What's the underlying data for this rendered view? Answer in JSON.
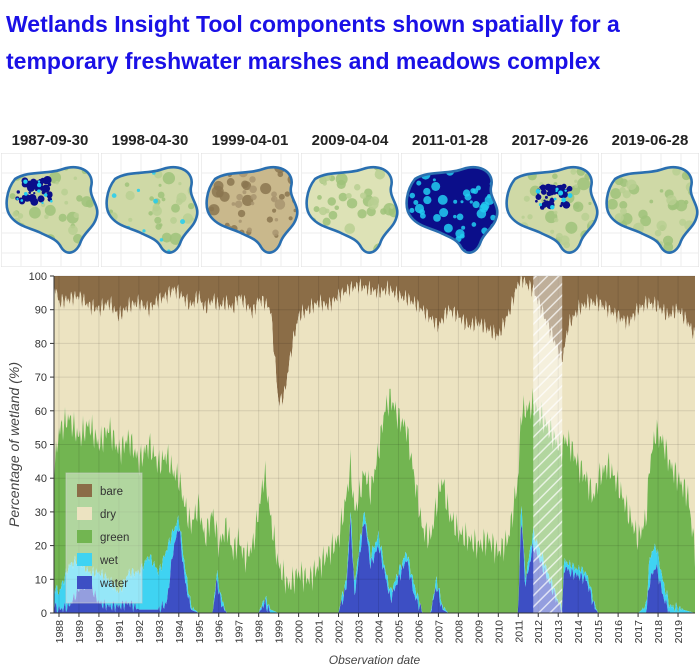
{
  "title": "Wetlands Insight Tool components shown spatially for a temporary freshwater marshes and meadows complex",
  "thumbnails": [
    {
      "date": "1987-09-30",
      "state": "partial-water"
    },
    {
      "date": "1998-04-30",
      "state": "green-wet"
    },
    {
      "date": "1999-04-01",
      "state": "bare-dry"
    },
    {
      "date": "2009-04-04",
      "state": "dry"
    },
    {
      "date": "2011-01-28",
      "state": "full-water"
    },
    {
      "date": "2017-09-26",
      "state": "partial-water"
    },
    {
      "date": "2019-06-28",
      "state": "dry-green"
    }
  ],
  "colors": {
    "water": "#3d4fc4",
    "wet": "#3fd3f2",
    "green": "#72b551",
    "dry": "#ece3c1",
    "bare": "#8b6d47",
    "outline": "#2a6fb0",
    "water_thumb": "#0b0e8a",
    "wet_thumb": "#22ccf0"
  },
  "chart_data": {
    "type": "area",
    "stacked": true,
    "xlabel": "Observation date",
    "ylabel": "Percentage of wetland (%)",
    "xlim": [
      1987.75,
      2019.85
    ],
    "ylim": [
      0,
      100
    ],
    "yticks": [
      0,
      10,
      20,
      30,
      40,
      50,
      60,
      70,
      80,
      90,
      100
    ],
    "xticks": [
      "1988",
      "1989",
      "1990",
      "1991",
      "1992",
      "1993",
      "1994",
      "1995",
      "1996",
      "1997",
      "1998",
      "1999",
      "2000",
      "2001",
      "2002",
      "2003",
      "2004",
      "2005",
      "2006",
      "2007",
      "2008",
      "2009",
      "2010",
      "2011",
      "2012",
      "2013",
      "2014",
      "2015",
      "2016",
      "2017",
      "2018",
      "2019"
    ],
    "grid": true,
    "legend_position": "bottom-left",
    "legend": [
      "bare",
      "dry",
      "green",
      "wet",
      "water"
    ],
    "gap_period": [
      2011.75,
      2013.2
    ],
    "series_order": [
      "water",
      "wet",
      "green",
      "dry",
      "bare"
    ],
    "note": "Cumulative boundaries: water = water; wet = water+wet; green = water+wet+green; bare_top = 100 - bare.",
    "water": [
      [
        1987.75,
        2
      ],
      [
        1988.0,
        1
      ],
      [
        1988.5,
        2
      ],
      [
        1989.0,
        7
      ],
      [
        1989.5,
        9
      ],
      [
        1990.0,
        3
      ],
      [
        1990.5,
        2
      ],
      [
        1991.0,
        2
      ],
      [
        1991.5,
        3
      ],
      [
        1992.0,
        1
      ],
      [
        1992.5,
        1
      ],
      [
        1993.0,
        1
      ],
      [
        1993.4,
        3
      ],
      [
        1993.7,
        18
      ],
      [
        1994.0,
        26
      ],
      [
        1994.3,
        10
      ],
      [
        1994.6,
        1
      ],
      [
        1995.0,
        0
      ],
      [
        1995.7,
        0
      ],
      [
        1995.9,
        10
      ],
      [
        1996.1,
        3
      ],
      [
        1996.4,
        0
      ],
      [
        1997.0,
        0
      ],
      [
        1997.3,
        0
      ],
      [
        1998.0,
        0
      ],
      [
        1998.3,
        3
      ],
      [
        1998.6,
        0
      ],
      [
        1999.0,
        0
      ],
      [
        2000.0,
        0
      ],
      [
        2001.0,
        0
      ],
      [
        2002.0,
        0
      ],
      [
        2002.4,
        8
      ],
      [
        2002.6,
        28
      ],
      [
        2002.8,
        5
      ],
      [
        2003.0,
        15
      ],
      [
        2003.3,
        28
      ],
      [
        2003.6,
        14
      ],
      [
        2004.0,
        20
      ],
      [
        2004.3,
        12
      ],
      [
        2004.6,
        4
      ],
      [
        2005.0,
        10
      ],
      [
        2005.4,
        16
      ],
      [
        2005.8,
        5
      ],
      [
        2006.2,
        0
      ],
      [
        2006.6,
        0
      ],
      [
        2006.9,
        8
      ],
      [
        2007.2,
        1
      ],
      [
        2007.5,
        0
      ],
      [
        2008.0,
        0
      ],
      [
        2009.0,
        0
      ],
      [
        2010.0,
        0
      ],
      [
        2011.0,
        0
      ],
      [
        2011.15,
        30
      ],
      [
        2011.35,
        8
      ],
      [
        2011.75,
        20
      ],
      [
        2013.2,
        0
      ],
      [
        2013.3,
        14
      ],
      [
        2013.6,
        12
      ],
      [
        2014.0,
        11
      ],
      [
        2014.4,
        10
      ],
      [
        2014.8,
        2
      ],
      [
        2015.0,
        0
      ],
      [
        2016.0,
        0
      ],
      [
        2017.0,
        0
      ],
      [
        2017.4,
        0
      ],
      [
        2017.6,
        10
      ],
      [
        2017.9,
        14
      ],
      [
        2018.3,
        4
      ],
      [
        2018.6,
        0
      ],
      [
        2019.85,
        0
      ]
    ],
    "wet": [
      [
        1987.75,
        8
      ],
      [
        1988.0,
        6
      ],
      [
        1988.5,
        14
      ],
      [
        1989.0,
        16
      ],
      [
        1989.5,
        12
      ],
      [
        1990.0,
        12
      ],
      [
        1990.5,
        10
      ],
      [
        1991.0,
        6
      ],
      [
        1991.5,
        12
      ],
      [
        1992.0,
        12
      ],
      [
        1992.5,
        17
      ],
      [
        1993.0,
        12
      ],
      [
        1993.4,
        19
      ],
      [
        1993.7,
        24
      ],
      [
        1994.0,
        28
      ],
      [
        1994.3,
        14
      ],
      [
        1994.6,
        2
      ],
      [
        1995.0,
        0
      ],
      [
        1995.7,
        0
      ],
      [
        1995.9,
        12
      ],
      [
        1996.1,
        5
      ],
      [
        1996.4,
        0
      ],
      [
        1997.0,
        0
      ],
      [
        1997.3,
        0
      ],
      [
        1998.0,
        0
      ],
      [
        1998.3,
        4
      ],
      [
        1998.6,
        1
      ],
      [
        1999.0,
        0
      ],
      [
        2000.0,
        0
      ],
      [
        2001.0,
        0
      ],
      [
        2002.0,
        0
      ],
      [
        2002.4,
        10
      ],
      [
        2002.6,
        30
      ],
      [
        2002.8,
        8
      ],
      [
        2003.0,
        18
      ],
      [
        2003.3,
        30
      ],
      [
        2003.6,
        17
      ],
      [
        2004.0,
        23
      ],
      [
        2004.3,
        14
      ],
      [
        2004.6,
        6
      ],
      [
        2005.0,
        12
      ],
      [
        2005.4,
        18
      ],
      [
        2005.8,
        8
      ],
      [
        2006.2,
        0
      ],
      [
        2006.6,
        0
      ],
      [
        2006.9,
        10
      ],
      [
        2007.2,
        2
      ],
      [
        2007.5,
        0
      ],
      [
        2008.0,
        0
      ],
      [
        2009.0,
        0
      ],
      [
        2010.0,
        0
      ],
      [
        2011.0,
        0
      ],
      [
        2011.15,
        34
      ],
      [
        2011.35,
        10
      ],
      [
        2011.75,
        24
      ],
      [
        2013.2,
        0
      ],
      [
        2013.3,
        16
      ],
      [
        2013.6,
        14
      ],
      [
        2014.0,
        13
      ],
      [
        2014.4,
        12
      ],
      [
        2014.8,
        3
      ],
      [
        2015.0,
        0
      ],
      [
        2016.0,
        0
      ],
      [
        2017.0,
        0
      ],
      [
        2017.4,
        2
      ],
      [
        2017.6,
        17
      ],
      [
        2017.9,
        20
      ],
      [
        2018.3,
        8
      ],
      [
        2018.6,
        2
      ],
      [
        2019.85,
        0
      ]
    ],
    "green": [
      [
        1987.75,
        42
      ],
      [
        1988.0,
        54
      ],
      [
        1988.5,
        58
      ],
      [
        1989.0,
        52
      ],
      [
        1989.5,
        56
      ],
      [
        1990.0,
        50
      ],
      [
        1990.5,
        55
      ],
      [
        1991.0,
        48
      ],
      [
        1991.5,
        52
      ],
      [
        1992.0,
        45
      ],
      [
        1992.5,
        50
      ],
      [
        1993.0,
        44
      ],
      [
        1993.4,
        47
      ],
      [
        1993.7,
        42
      ],
      [
        1994.0,
        40
      ],
      [
        1994.3,
        32
      ],
      [
        1994.6,
        26
      ],
      [
        1995.0,
        32
      ],
      [
        1995.3,
        22
      ],
      [
        1995.7,
        30
      ],
      [
        1996.0,
        20
      ],
      [
        1996.4,
        26
      ],
      [
        1996.7,
        18
      ],
      [
        1997.0,
        22
      ],
      [
        1997.3,
        16
      ],
      [
        1997.7,
        20
      ],
      [
        1998.0,
        30
      ],
      [
        1998.3,
        42
      ],
      [
        1998.6,
        28
      ],
      [
        1999.0,
        14
      ],
      [
        1999.5,
        8
      ],
      [
        2000.0,
        12
      ],
      [
        2000.5,
        10
      ],
      [
        2001.0,
        14
      ],
      [
        2001.5,
        18
      ],
      [
        2002.0,
        22
      ],
      [
        2002.4,
        35
      ],
      [
        2002.6,
        44
      ],
      [
        2002.8,
        30
      ],
      [
        2003.0,
        34
      ],
      [
        2003.3,
        42
      ],
      [
        2003.6,
        36
      ],
      [
        2004.0,
        48
      ],
      [
        2004.3,
        60
      ],
      [
        2004.6,
        64
      ],
      [
        2005.0,
        58
      ],
      [
        2005.4,
        55
      ],
      [
        2005.8,
        40
      ],
      [
        2006.2,
        25
      ],
      [
        2006.6,
        22
      ],
      [
        2006.9,
        32
      ],
      [
        2007.2,
        40
      ],
      [
        2007.5,
        30
      ],
      [
        2008.0,
        24
      ],
      [
        2008.5,
        22
      ],
      [
        2009.0,
        20
      ],
      [
        2009.5,
        22
      ],
      [
        2010.0,
        18
      ],
      [
        2010.5,
        22
      ],
      [
        2011.0,
        40
      ],
      [
        2011.15,
        60
      ],
      [
        2011.35,
        60
      ],
      [
        2011.75,
        62
      ],
      [
        2013.2,
        48
      ],
      [
        2013.3,
        52
      ],
      [
        2013.6,
        50
      ],
      [
        2014.0,
        44
      ],
      [
        2014.4,
        40
      ],
      [
        2014.8,
        34
      ],
      [
        2015.0,
        40
      ],
      [
        2015.5,
        44
      ],
      [
        2016.0,
        38
      ],
      [
        2016.5,
        30
      ],
      [
        2017.0,
        22
      ],
      [
        2017.4,
        28
      ],
      [
        2017.6,
        45
      ],
      [
        2017.9,
        54
      ],
      [
        2018.3,
        50
      ],
      [
        2018.6,
        44
      ],
      [
        2019.0,
        40
      ],
      [
        2019.5,
        35
      ],
      [
        2019.85,
        18
      ]
    ],
    "bare": [
      [
        1987.75,
        2
      ],
      [
        1988.0,
        8
      ],
      [
        1988.5,
        7
      ],
      [
        1989.0,
        6
      ],
      [
        1989.5,
        9
      ],
      [
        1990.0,
        10
      ],
      [
        1990.5,
        8
      ],
      [
        1991.0,
        12
      ],
      [
        1991.5,
        9
      ],
      [
        1992.0,
        8
      ],
      [
        1992.5,
        10
      ],
      [
        1993.0,
        7
      ],
      [
        1993.4,
        6
      ],
      [
        1993.7,
        4
      ],
      [
        1994.0,
        5
      ],
      [
        1994.3,
        7
      ],
      [
        1994.6,
        9
      ],
      [
        1995.0,
        6
      ],
      [
        1995.3,
        10
      ],
      [
        1995.7,
        7
      ],
      [
        1996.0,
        9
      ],
      [
        1996.4,
        8
      ],
      [
        1996.7,
        10
      ],
      [
        1997.0,
        6
      ],
      [
        1997.3,
        8
      ],
      [
        1997.7,
        11
      ],
      [
        1998.0,
        7
      ],
      [
        1998.3,
        8
      ],
      [
        1998.6,
        10
      ],
      [
        1999.0,
        38
      ],
      [
        1999.3,
        35
      ],
      [
        1999.5,
        27
      ],
      [
        1999.7,
        20
      ],
      [
        2000.0,
        12
      ],
      [
        2000.5,
        10
      ],
      [
        2001.0,
        8
      ],
      [
        2001.5,
        9
      ],
      [
        2002.0,
        6
      ],
      [
        2002.5,
        4
      ],
      [
        2003.0,
        3
      ],
      [
        2003.5,
        4
      ],
      [
        2004.0,
        5
      ],
      [
        2004.5,
        4
      ],
      [
        2005.0,
        6
      ],
      [
        2005.5,
        7
      ],
      [
        2006.0,
        9
      ],
      [
        2006.5,
        12
      ],
      [
        2007.0,
        15
      ],
      [
        2007.5,
        10
      ],
      [
        2008.0,
        12
      ],
      [
        2008.5,
        15
      ],
      [
        2009.0,
        14
      ],
      [
        2009.5,
        16
      ],
      [
        2010.0,
        18
      ],
      [
        2010.3,
        14
      ],
      [
        2010.6,
        10
      ],
      [
        2011.0,
        2
      ],
      [
        2011.2,
        1
      ],
      [
        2011.5,
        3
      ],
      [
        2011.75,
        4
      ],
      [
        2013.2,
        25
      ],
      [
        2013.5,
        15
      ],
      [
        2014.0,
        10
      ],
      [
        2014.5,
        8
      ],
      [
        2015.0,
        8
      ],
      [
        2015.5,
        10
      ],
      [
        2016.0,
        12
      ],
      [
        2016.5,
        14
      ],
      [
        2017.0,
        10
      ],
      [
        2017.5,
        8
      ],
      [
        2018.0,
        9
      ],
      [
        2018.5,
        12
      ],
      [
        2019.0,
        10
      ],
      [
        2019.5,
        14
      ],
      [
        2019.85,
        18
      ]
    ]
  }
}
